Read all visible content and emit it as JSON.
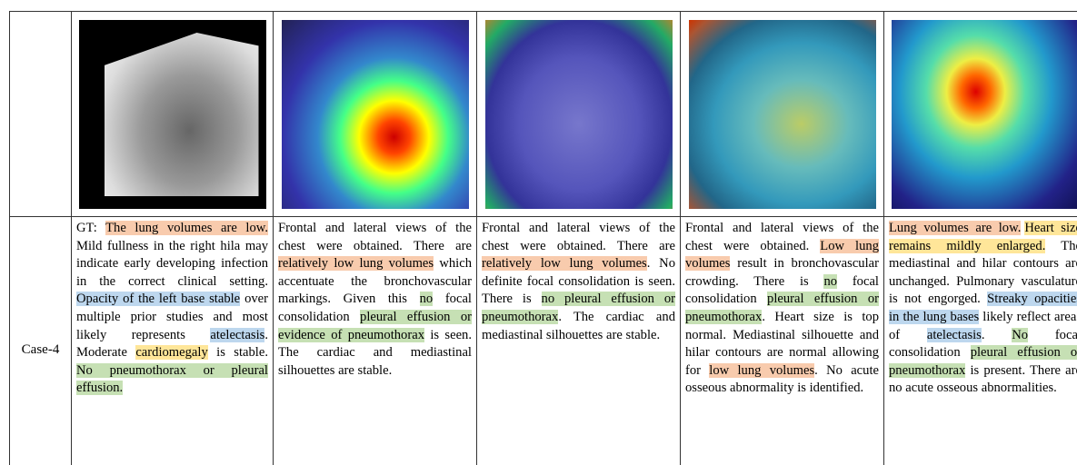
{
  "case_label": "Case-4",
  "cells": [
    {
      "segments": [
        {
          "text": "GT: "
        },
        {
          "text": "The lung volumes are low.",
          "color": "#f8cbad"
        },
        {
          "text": " Mild fullness in the right hila may indicate early developing infection in the correct clinical setting. "
        },
        {
          "text": "Opacity of the left base stable",
          "color": "#bdd7ee"
        },
        {
          "text": " over multiple prior studies and most likely represents "
        },
        {
          "text": "atelectasis",
          "color": "#bdd7ee"
        },
        {
          "text": ". Moderate "
        },
        {
          "text": "cardiomegaly",
          "color": "#ffe699"
        },
        {
          "text": " is stable. "
        },
        {
          "text": "No pneumothorax or pleural effusion.",
          "color": "#c6e0b4"
        }
      ]
    },
    {
      "segments": [
        {
          "text": "Frontal and lateral views of the chest were obtained. There are "
        },
        {
          "text": "relatively low lung volumes",
          "color": "#f8cbad"
        },
        {
          "text": " which accentuate the bronchovascular markings. Given this "
        },
        {
          "text": "no",
          "color": "#c6e0b4"
        },
        {
          "text": " focal consolidation "
        },
        {
          "text": "pleural effusion or evidence of pneumothorax",
          "color": "#c6e0b4"
        },
        {
          "text": " is seen. The cardiac and mediastinal silhouettes are stable."
        }
      ]
    },
    {
      "segments": [
        {
          "text": "Frontal and lateral views of the chest were obtained. There are "
        },
        {
          "text": "relatively low lung volumes",
          "color": "#f8cbad"
        },
        {
          "text": ". No definite focal consolidation is seen. There is "
        },
        {
          "text": "no pleural effusion or pneumothorax",
          "color": "#c6e0b4"
        },
        {
          "text": ". The cardiac and mediastinal silhouettes are stable."
        }
      ]
    },
    {
      "segments": [
        {
          "text": "Frontal and lateral views of the chest were obtained. "
        },
        {
          "text": "Low lung volumes",
          "color": "#f8cbad"
        },
        {
          "text": " result in bronchovascular crowding. There is "
        },
        {
          "text": "no",
          "color": "#c6e0b4"
        },
        {
          "text": " focal consolidation "
        },
        {
          "text": "pleural effusion or pneumothorax",
          "color": "#c6e0b4"
        },
        {
          "text": ". Heart size is top normal. Mediastinal silhouette and hilar contours are normal allowing for "
        },
        {
          "text": "low lung volumes",
          "color": "#f8cbad"
        },
        {
          "text": ". No acute osseous abnormality is identified."
        }
      ]
    },
    {
      "segments": [
        {
          "text": "Lung volumes are low.",
          "color": "#f8cbad",
          "gap": true
        },
        {
          "text": "Heart size remains mildly enlarged.",
          "color": "#ffe699"
        },
        {
          "text": " The mediastinal and hilar contours are unchanged. Pulmonary vasculature is not engorged. "
        },
        {
          "text": "Streaky opacities in the lung bases",
          "color": "#bdd7ee"
        },
        {
          "text": " likely reflect areas of "
        },
        {
          "text": "atelectasis",
          "color": "#bdd7ee"
        },
        {
          "text": ". "
        },
        {
          "text": "No",
          "color": "#c6e0b4"
        },
        {
          "text": " focal consolidation "
        },
        {
          "text": "pleural effusion or pneumothorax",
          "color": "#c6e0b4"
        },
        {
          "text": " is present. There are no acute osseous abnormalities."
        }
      ]
    }
  ]
}
